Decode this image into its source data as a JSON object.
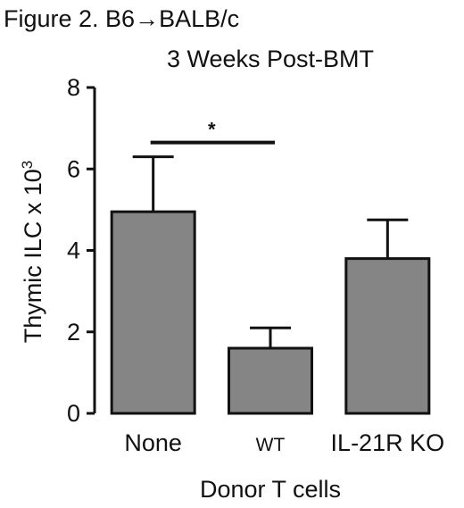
{
  "figure_label": "Figure 2. B6→BALB/c",
  "colors": {
    "bar": "#858585",
    "stroke": "#111111"
  },
  "chart_data": {
    "type": "bar",
    "title": "3 Weeks Post-BMT",
    "xlabel": "Donor T cells",
    "ylabel": "Thymic ILC x 10",
    "ylabel_superscript": "3",
    "categories": [
      "None",
      "WT",
      "IL-21R KO"
    ],
    "values": [
      4.95,
      1.6,
      3.8
    ],
    "error_upper": [
      1.35,
      0.5,
      0.95
    ],
    "ylim": [
      0,
      8
    ],
    "yticks": [
      0,
      2,
      4,
      6,
      8
    ],
    "significance": {
      "from": 0,
      "to": 1,
      "label": "*",
      "y": 6.65
    }
  }
}
